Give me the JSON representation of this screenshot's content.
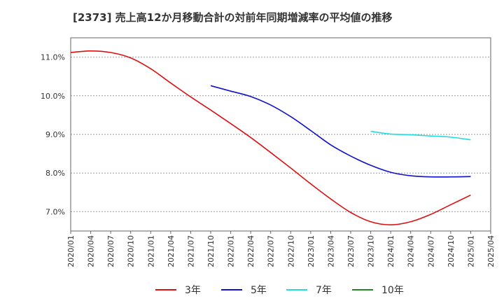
{
  "chart_data": {
    "type": "line",
    "title": "[2373]  売上高12か月移動合計の対前年同期増減率の平均値の推移",
    "xlabel": "",
    "ylabel": "",
    "ylim": [
      6.5,
      11.5
    ],
    "y_ticks": [
      7.0,
      8.0,
      9.0,
      10.0,
      11.0
    ],
    "y_tick_labels": [
      "7.0%",
      "8.0%",
      "9.0%",
      "10.0%",
      "11.0%"
    ],
    "x_tick_labels": [
      "2020/01",
      "2020/04",
      "2020/07",
      "2020/10",
      "2021/01",
      "2021/04",
      "2021/07",
      "2021/10",
      "2022/01",
      "2022/04",
      "2022/07",
      "2022/10",
      "2023/01",
      "2023/04",
      "2023/07",
      "2023/10",
      "2024/01",
      "2024/04",
      "2024/07",
      "2024/10",
      "2025/01",
      "2025/04"
    ],
    "grid": true,
    "legend_position": "bottom",
    "series": [
      {
        "name": "3年",
        "color": "#dd1111",
        "x": [
          "2020/01",
          "2020/04",
          "2020/07",
          "2020/10",
          "2021/01",
          "2021/04",
          "2021/07",
          "2021/10",
          "2022/01",
          "2022/04",
          "2022/07",
          "2022/10",
          "2023/01",
          "2023/04",
          "2023/07",
          "2023/10",
          "2024/01",
          "2024/04",
          "2024/07",
          "2024/10",
          "2025/01"
        ],
        "y": [
          11.12,
          11.16,
          11.12,
          10.98,
          10.7,
          10.33,
          9.97,
          9.63,
          9.28,
          8.92,
          8.53,
          8.13,
          7.72,
          7.33,
          6.98,
          6.74,
          6.66,
          6.74,
          6.93,
          7.18,
          7.43
        ]
      },
      {
        "name": "5年",
        "color": "#1111cc",
        "x": [
          "2021/10",
          "2022/01",
          "2022/04",
          "2022/07",
          "2022/10",
          "2023/01",
          "2023/04",
          "2023/07",
          "2023/10",
          "2024/01",
          "2024/04",
          "2024/07",
          "2024/10",
          "2025/01"
        ],
        "y": [
          10.26,
          10.12,
          9.98,
          9.76,
          9.46,
          9.1,
          8.73,
          8.44,
          8.2,
          8.02,
          7.93,
          7.9,
          7.9,
          7.91
        ]
      },
      {
        "name": "7年",
        "color": "#22dddd",
        "x": [
          "2023/10",
          "2024/01",
          "2024/04",
          "2024/07",
          "2024/10",
          "2025/01"
        ],
        "y": [
          9.08,
          9.01,
          8.99,
          8.96,
          8.93,
          8.86
        ]
      },
      {
        "name": "10年",
        "color": "#228822",
        "x": [],
        "y": []
      }
    ]
  }
}
